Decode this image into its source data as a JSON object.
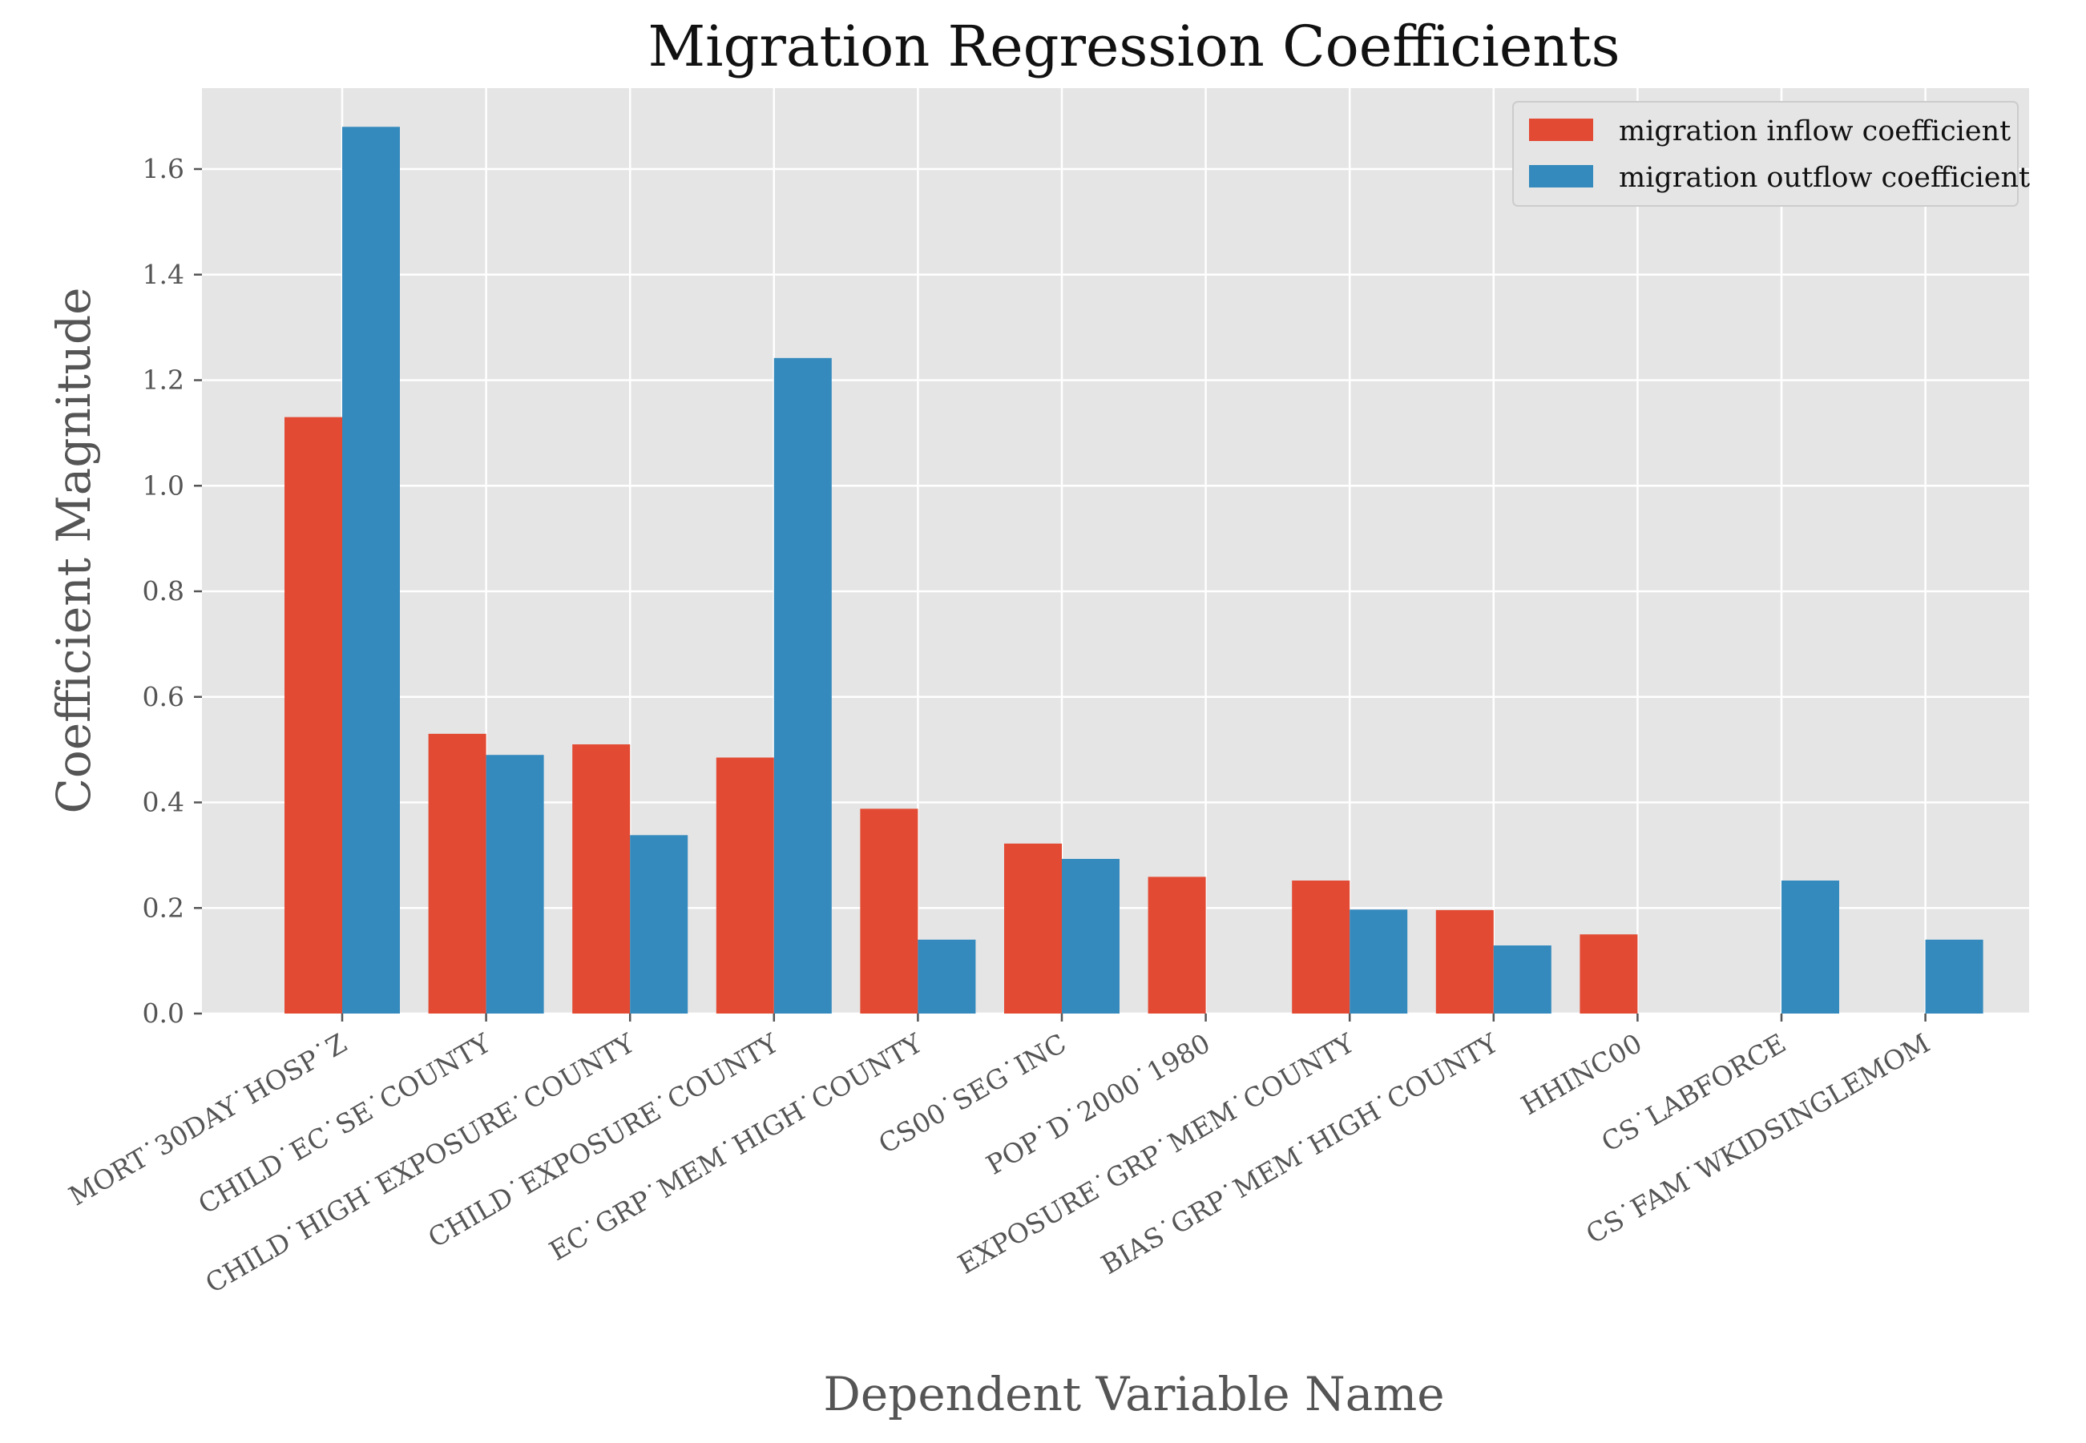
{
  "chart_data": {
    "type": "bar",
    "title": "Migration Regression Coefficients",
    "xlabel": "Dependent Variable Name",
    "ylabel": "Coefficient Magnitude",
    "ylim": [
      0,
      1.75
    ],
    "yticks": [
      "0.0",
      "0.2",
      "0.4",
      "0.6",
      "0.8",
      "1.0",
      "1.2",
      "1.4",
      "1.6"
    ],
    "grid": true,
    "legend_position": "top-right",
    "categories": [
      "MORT˙30DAY˙HOSP˙Z",
      "CHILD˙EC˙SE˙COUNTY",
      "CHILD˙HIGH˙EXPOSURE˙COUNTY",
      "CHILD˙EXPOSURE˙COUNTY",
      "EC˙GRP˙MEM˙HIGH˙COUNTY",
      "CS00˙SEG˙INC",
      "POP˙D˙2000˙1980",
      "EXPOSURE˙GRP˙MEM˙COUNTY",
      "BIAS˙GRP˙MEM˙HIGH˙COUNTY",
      "HHINC00",
      "CS˙LABFORCE",
      "CS˙FAM˙WKIDSINGLEMOM"
    ],
    "series": [
      {
        "name": "migration inflow coefficient",
        "color": "#E24A33",
        "values": [
          1.13,
          0.53,
          0.51,
          0.485,
          0.388,
          0.322,
          0.259,
          0.252,
          0.196,
          0.15,
          0,
          0
        ]
      },
      {
        "name": "migration outflow coefficient",
        "color": "#348ABD",
        "values": [
          1.68,
          0.49,
          0.338,
          1.242,
          0.14,
          0.293,
          0,
          0.197,
          0.129,
          0,
          0.252,
          0.14
        ]
      }
    ]
  },
  "style": {
    "plot_background": "#E5E5E5",
    "grid_color": "#FFFFFF",
    "tick_color": "#555555"
  }
}
